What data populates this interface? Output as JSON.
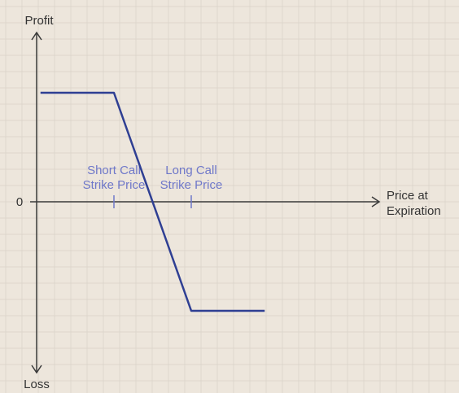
{
  "chart_data": {
    "type": "line",
    "ylabel_top": "Profit",
    "ylabel_bottom": "Loss",
    "xlabel": [
      "Price at",
      "Expiration"
    ],
    "zero_label": "0",
    "annotations": [
      {
        "lines": [
          "Short Call",
          "Strike Price"
        ],
        "x": 1
      },
      {
        "lines": [
          "Long Call",
          "Strike Price"
        ],
        "x": 2
      }
    ],
    "xlim": [
      0,
      3
    ],
    "ylim": [
      -1.5,
      1.5
    ],
    "series": [
      {
        "x": [
          0.05,
          1,
          2,
          2.95
        ],
        "y": [
          1,
          1,
          -1,
          -1
        ]
      }
    ],
    "grid": true,
    "colors": {
      "line": "#2f3f93",
      "axis": "#3a3a3a",
      "annotation": "#6f78c9",
      "background": "#ede6dc",
      "grid": "#d9d2c8"
    }
  }
}
